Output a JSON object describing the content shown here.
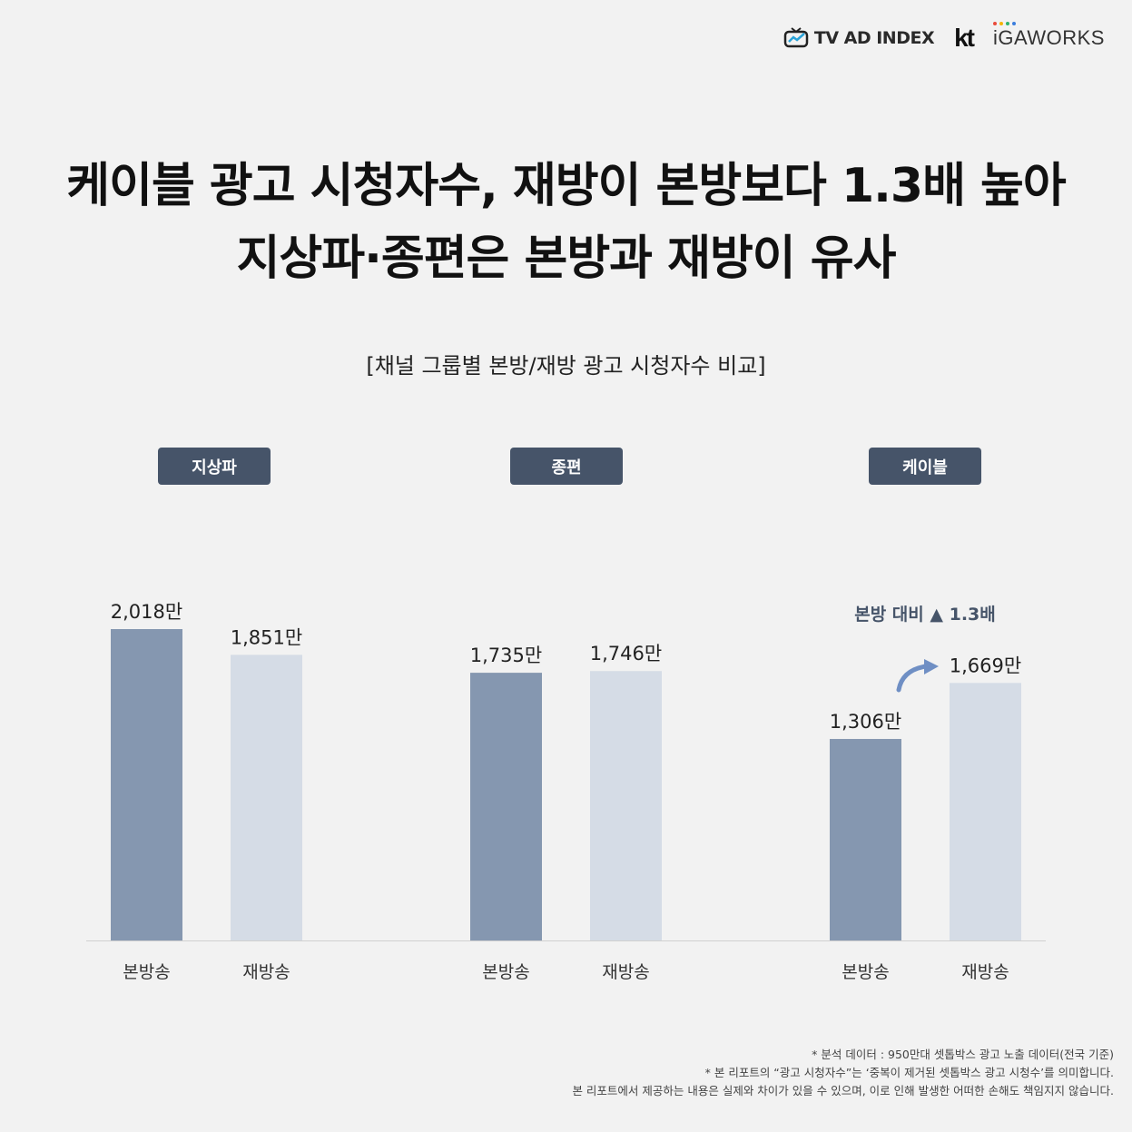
{
  "logos": {
    "tvadindex": "TV AD INDEX",
    "kt": "kt",
    "igaworks": "iGAWORKS"
  },
  "title": {
    "line1": "케이블 광고 시청자수, 재방이 본방보다 1.3배 높아",
    "line2": "지상파·종편은 본방과 재방이 유사"
  },
  "subtitle": "[채널 그룹별 본방/재방 광고 시청자수 비교]",
  "colors": {
    "primary_bar": "#8597b0",
    "secondary_bar": "#d5dce6",
    "label_bg": "#465469",
    "arrow": "#6f8fc4"
  },
  "chart_data": {
    "type": "bar",
    "unit": "만",
    "groups": [
      {
        "label": "지상파",
        "bars": [
          {
            "category": "본방송",
            "value": 2018,
            "label": "2,018만"
          },
          {
            "category": "재방송",
            "value": 1851,
            "label": "1,851만"
          }
        ]
      },
      {
        "label": "종편",
        "bars": [
          {
            "category": "본방송",
            "value": 1735,
            "label": "1,735만"
          },
          {
            "category": "재방송",
            "value": 1746,
            "label": "1,746만"
          }
        ]
      },
      {
        "label": "케이블",
        "bars": [
          {
            "category": "본방송",
            "value": 1306,
            "label": "1,306만"
          },
          {
            "category": "재방송",
            "value": 1669,
            "label": "1,669만"
          }
        ]
      }
    ],
    "ylim": [
      0,
      2018
    ],
    "annotation": {
      "text": "본방 대비 ▲ 1.3배",
      "group": "케이블"
    }
  },
  "footnotes": [
    "* 분석 데이터 : 950만대 셋톱박스 광고 노출 데이터(전국 기준)",
    "* 본 리포트의 “광고 시청자수”는 ‘중복이 제거된 셋톱박스 광고 시청수’를 의미합니다.",
    "본 리포트에서 제공하는 내용은 실제와 차이가 있을 수 있으며, 이로 인해 발생한 어떠한 손해도 책임지지 않습니다."
  ]
}
